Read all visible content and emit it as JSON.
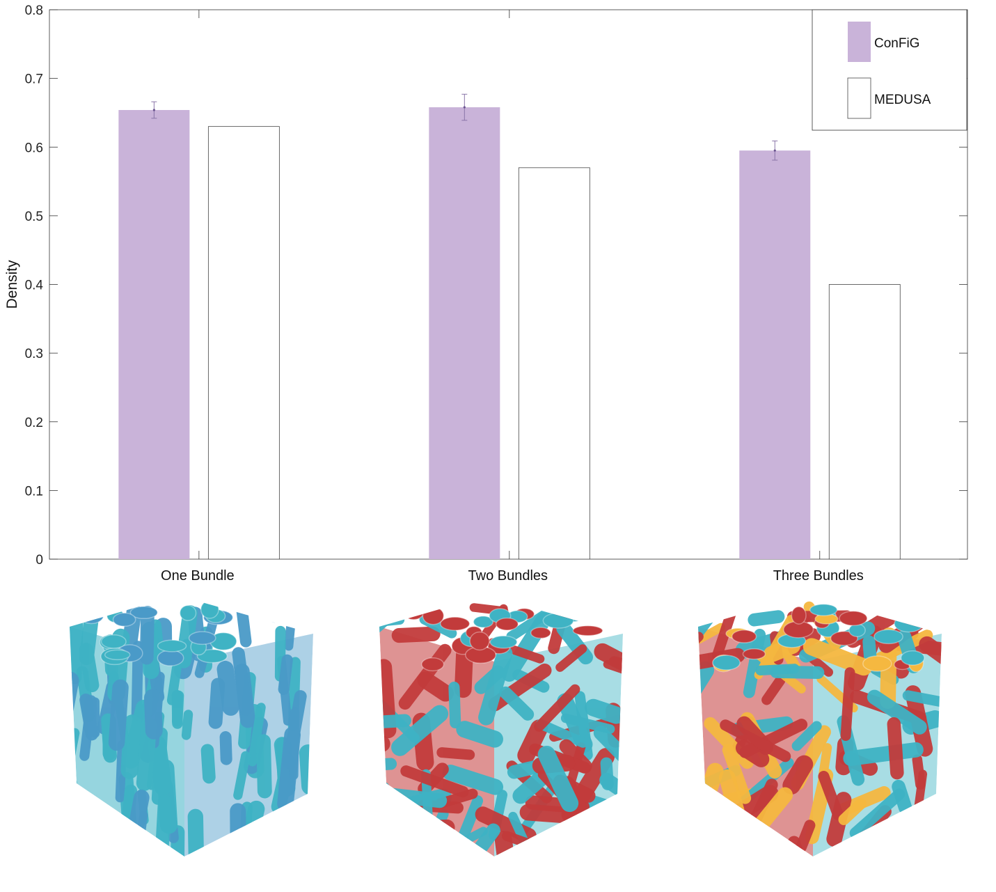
{
  "chart_data": {
    "type": "bar",
    "ylabel": "Density",
    "ylim": [
      0,
      0.8
    ],
    "yticks": [
      "0",
      "0.1",
      "0.2",
      "0.3",
      "0.4",
      "0.5",
      "0.6",
      "0.7",
      "0.8"
    ],
    "categories": [
      "One Bundle",
      "Two Bundles",
      "Three Bundles"
    ],
    "series": [
      {
        "name": "ConFiG",
        "values": [
          0.654,
          0.658,
          0.595
        ],
        "error": [
          0.012,
          0.019,
          0.014
        ],
        "color": "#c9b3d9"
      },
      {
        "name": "MEDUSA",
        "values": [
          0.63,
          0.57,
          0.4
        ],
        "color": "#ffffff"
      }
    ],
    "legend_position": "top-right",
    "grid": false
  },
  "illustrations": [
    {
      "category": "One Bundle",
      "colors": [
        "#3fb3c4",
        "#4a9ac8"
      ]
    },
    {
      "category": "Two Bundles",
      "colors": [
        "#c23b3b",
        "#3fb3c4"
      ]
    },
    {
      "category": "Three Bundles",
      "colors": [
        "#c23b3b",
        "#f5b840",
        "#3fb3c4"
      ]
    }
  ]
}
